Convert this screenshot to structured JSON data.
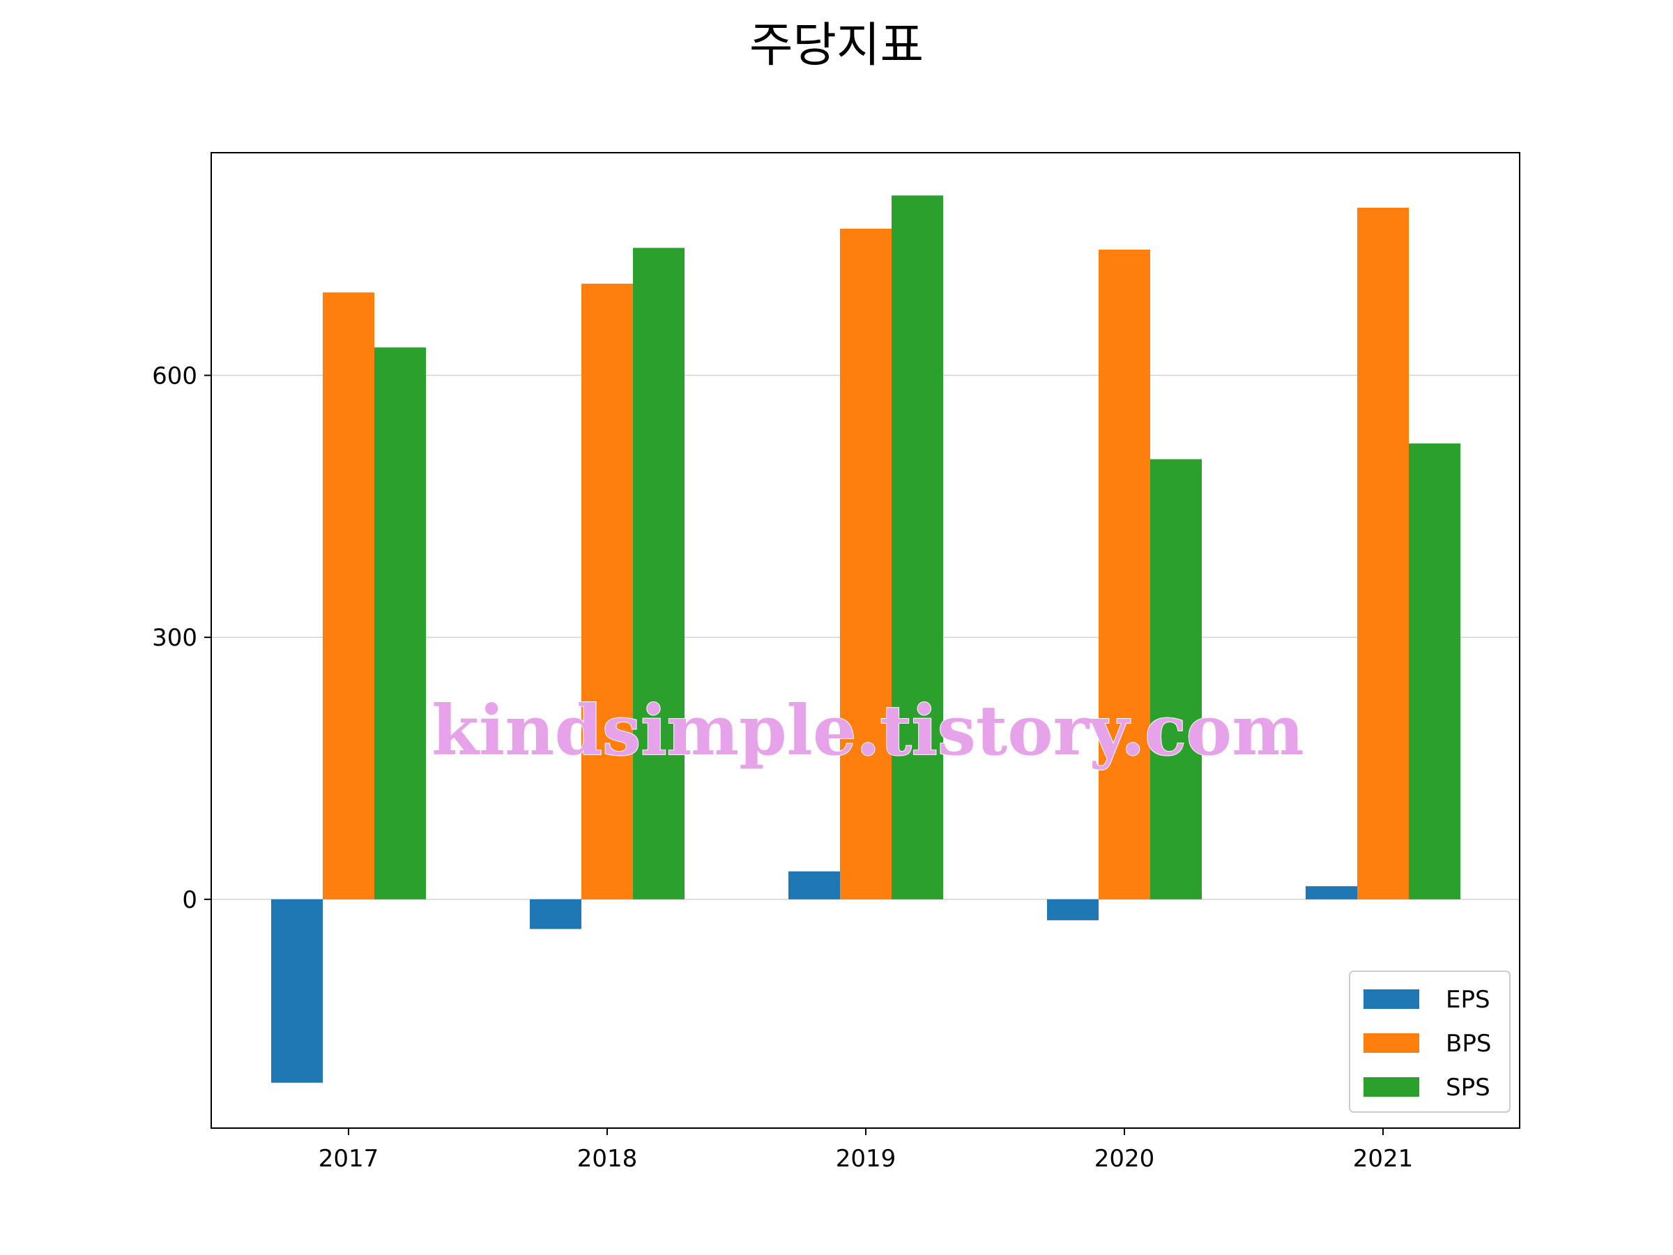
{
  "chart_data": {
    "type": "bar",
    "title": "주당지표",
    "xlabel": "",
    "ylabel": "",
    "categories": [
      "2017",
      "2018",
      "2019",
      "2020",
      "2021"
    ],
    "series": [
      {
        "name": "EPS",
        "color": "#1f77b4",
        "values": [
          -210,
          -34,
          32,
          -24,
          15
        ]
      },
      {
        "name": "BPS",
        "color": "#ff7f0e",
        "values": [
          695,
          705,
          768,
          744,
          792
        ]
      },
      {
        "name": "SPS",
        "color": "#2ca02c",
        "values": [
          632,
          746,
          806,
          504,
          522
        ]
      }
    ],
    "ylim": [
      -262,
      855
    ],
    "yticks": [
      0,
      300,
      600
    ],
    "grid": "y",
    "legend_position": "lower-right",
    "watermark": "kindsimple.tistory.com"
  }
}
